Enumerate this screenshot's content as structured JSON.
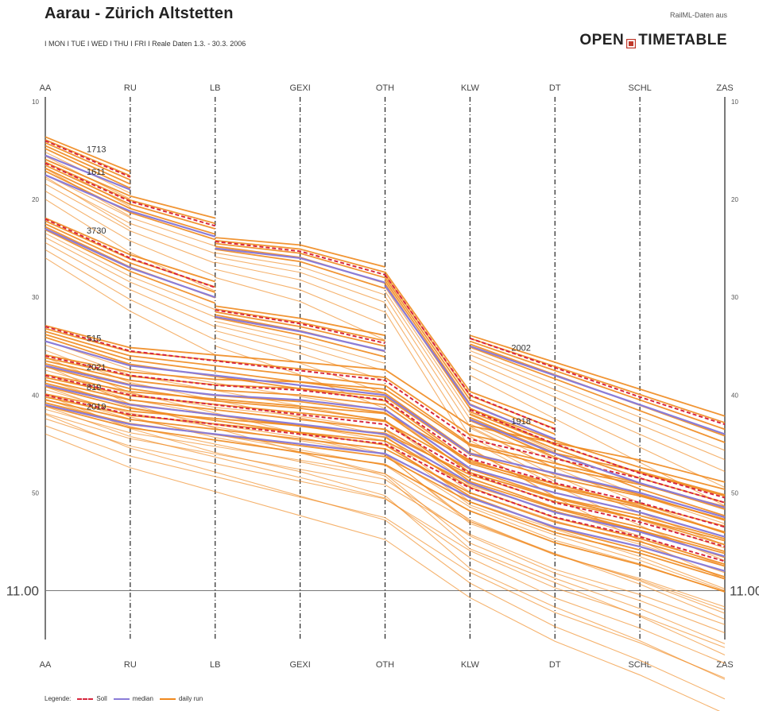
{
  "title": "Aarau - Zürich Altstetten",
  "subtitle": "I MON I TUE I WED I THU I FRI I    Reale Daten 1.3. - 30.3. 2006",
  "source_label": "RailML-Daten aus",
  "logo": {
    "left": "OPEN",
    "right": "TIMETABLE",
    "icon": "open-timetable-logo-icon"
  },
  "legend": {
    "label": "Legende:",
    "items": [
      {
        "name": "Soll",
        "style": "dashed",
        "color": "#d7263d"
      },
      {
        "name": "median",
        "style": "solid",
        "color": "#8a7cd8"
      },
      {
        "name": "daily run",
        "style": "solid",
        "color": "#f0891e"
      }
    ]
  },
  "colors": {
    "soll": "#d7263d",
    "median": "#8a7cd8",
    "daily": "#f0891e",
    "axis": "#222222"
  },
  "chart_data": {
    "type": "line",
    "stations": [
      "AA",
      "RU",
      "LB",
      "GEXI",
      "OTH",
      "KLW",
      "DT",
      "SCHL",
      "ZAS"
    ],
    "y_ticks": [
      {
        "value": 10,
        "label": "10"
      },
      {
        "value": 20,
        "label": "20"
      },
      {
        "value": 30,
        "label": "30"
      },
      {
        "value": 40,
        "label": "40"
      },
      {
        "value": 50,
        "label": "50"
      }
    ],
    "ylim": [
      10,
      65
    ],
    "hour_line": {
      "value": 60,
      "label": "11.00"
    },
    "grid": false,
    "trains": [
      {
        "label": "1713",
        "stops": [
          [
            0,
            14.2
          ],
          [
            1,
            18.0
          ],
          null,
          null,
          null,
          null,
          null,
          null,
          null
        ],
        "soll": [
          [
            0,
            14.0
          ],
          [
            1,
            17.7
          ]
        ],
        "median": [
          [
            0,
            15.5
          ],
          [
            1,
            19.0
          ]
        ]
      },
      {
        "label": "1611",
        "stops": [
          [
            0,
            16.5
          ],
          [
            1,
            20.5
          ],
          [
            2,
            23.0
          ],
          null,
          null,
          null,
          null,
          null,
          null
        ],
        "soll": [
          [
            0,
            16.3
          ],
          [
            1,
            20.2
          ],
          [
            2,
            22.7
          ]
        ],
        "median": [
          [
            0,
            17.5
          ],
          [
            1,
            21.2
          ],
          [
            2,
            23.8
          ]
        ]
      },
      {
        "label": "3730",
        "stops": [
          [
            0,
            22.5
          ],
          [
            1,
            26.5
          ],
          [
            2,
            29.5
          ],
          null,
          null,
          null,
          null,
          null,
          null
        ],
        "soll": [
          [
            0,
            22.0
          ],
          [
            1,
            26.0
          ],
          [
            2,
            29.0
          ]
        ],
        "median": [
          [
            0,
            23.0
          ],
          [
            1,
            27.0
          ],
          [
            2,
            30.0
          ]
        ]
      },
      {
        "label": "",
        "stops": [
          null,
          null,
          [
            2,
            24.5
          ],
          [
            3,
            25.5
          ],
          [
            4,
            28.0
          ],
          null,
          null,
          null,
          null
        ],
        "soll": [
          [
            2,
            24.3
          ],
          [
            3,
            25.3
          ],
          [
            4,
            27.7
          ]
        ],
        "median": [
          [
            2,
            25.0
          ],
          [
            3,
            26.0
          ],
          [
            4,
            28.5
          ]
        ]
      },
      {
        "label": "",
        "stops": [
          null,
          null,
          [
            2,
            31.5
          ],
          [
            3,
            33.0
          ],
          [
            4,
            35.0
          ],
          null,
          null,
          null,
          null
        ],
        "soll": [
          [
            2,
            31.3
          ],
          [
            3,
            32.7
          ],
          [
            4,
            34.7
          ]
        ],
        "median": [
          [
            2,
            32.0
          ],
          [
            3,
            33.5
          ],
          [
            4,
            35.5
          ]
        ]
      },
      {
        "label": "",
        "stops": [
          null,
          null,
          null,
          null,
          [
            4,
            28.0
          ],
          [
            5,
            40.5
          ],
          [
            6,
            44.0
          ],
          null,
          null
        ],
        "soll": [
          [
            4,
            27.7
          ],
          [
            5,
            40.0
          ],
          [
            6,
            43.5
          ]
        ],
        "median": [
          [
            4,
            28.8
          ],
          [
            5,
            41.0
          ],
          [
            6,
            44.5
          ]
        ]
      },
      {
        "label": "2002",
        "stops": [
          null,
          null,
          null,
          null,
          null,
          [
            5,
            34.5
          ],
          [
            6,
            37.5
          ],
          [
            7,
            40.5
          ],
          [
            8,
            43.5
          ]
        ],
        "soll": [
          [
            5,
            34.2
          ],
          [
            6,
            37.2
          ],
          [
            7,
            40.2
          ],
          [
            8,
            43.0
          ]
        ],
        "median": [
          [
            5,
            35.0
          ],
          [
            6,
            38.0
          ],
          [
            7,
            41.0
          ],
          [
            8,
            44.0
          ]
        ]
      },
      {
        "label": "515",
        "stops": [
          [
            0,
            33.5
          ],
          [
            1,
            36.0
          ],
          [
            2,
            37.0
          ],
          [
            3,
            38.0
          ],
          [
            4,
            39.0
          ],
          [
            5,
            45.0
          ],
          [
            6,
            47.0
          ],
          [
            7,
            49.0
          ],
          [
            8,
            51.5
          ]
        ],
        "soll": [
          [
            0,
            33.0
          ],
          [
            1,
            35.5
          ],
          [
            2,
            36.5
          ],
          [
            3,
            37.5
          ],
          [
            4,
            38.5
          ],
          [
            5,
            44.5
          ],
          [
            6,
            46.5
          ],
          [
            7,
            48.5
          ],
          [
            8,
            51.0
          ]
        ],
        "median": [
          [
            0,
            34.5
          ],
          [
            1,
            37.0
          ],
          [
            2,
            38.0
          ],
          [
            3,
            39.0
          ],
          [
            4,
            40.0
          ],
          [
            5,
            46.0
          ],
          [
            6,
            48.0
          ],
          [
            7,
            50.0
          ],
          [
            8,
            52.5
          ]
        ]
      },
      {
        "label": "2021",
        "stops": [
          [
            0,
            36.5
          ],
          [
            1,
            38.5
          ],
          [
            2,
            39.5
          ],
          [
            3,
            40.0
          ],
          [
            4,
            41.0
          ],
          [
            5,
            47.0
          ],
          [
            6,
            49.5
          ],
          [
            7,
            51.5
          ],
          [
            8,
            54.0
          ]
        ],
        "soll": [
          [
            0,
            36.0
          ],
          [
            1,
            38.0
          ],
          [
            2,
            39.0
          ],
          [
            3,
            39.5
          ],
          [
            4,
            40.5
          ],
          [
            5,
            46.5
          ],
          [
            6,
            49.0
          ],
          [
            7,
            51.0
          ],
          [
            8,
            53.5
          ]
        ],
        "median": [
          [
            0,
            37.0
          ],
          [
            1,
            39.0
          ],
          [
            2,
            40.0
          ],
          [
            3,
            40.5
          ],
          [
            4,
            41.5
          ],
          [
            5,
            47.5
          ],
          [
            6,
            50.0
          ],
          [
            7,
            52.0
          ],
          [
            8,
            54.5
          ]
        ]
      },
      {
        "label": "819",
        "stops": [
          [
            0,
            38.5
          ],
          [
            1,
            40.5
          ],
          [
            2,
            41.5
          ],
          [
            3,
            42.5
          ],
          [
            4,
            43.5
          ],
          [
            5,
            48.5
          ],
          [
            6,
            51.5
          ],
          [
            7,
            53.5
          ],
          [
            8,
            56.0
          ]
        ],
        "soll": [
          [
            0,
            38.0
          ],
          [
            1,
            40.0
          ],
          [
            2,
            41.0
          ],
          [
            3,
            42.0
          ],
          [
            4,
            43.0
          ],
          [
            5,
            48.0
          ],
          [
            6,
            51.0
          ],
          [
            7,
            53.0
          ],
          [
            8,
            55.5
          ]
        ],
        "median": [
          [
            0,
            39.0
          ],
          [
            1,
            41.0
          ],
          [
            2,
            42.0
          ],
          [
            3,
            43.0
          ],
          [
            4,
            44.0
          ],
          [
            5,
            49.0
          ],
          [
            6,
            52.0
          ],
          [
            7,
            54.0
          ],
          [
            8,
            56.5
          ]
        ]
      },
      {
        "label": "2019",
        "stops": [
          [
            0,
            40.5
          ],
          [
            1,
            42.5
          ],
          [
            2,
            43.5
          ],
          [
            3,
            44.5
          ],
          [
            4,
            45.5
          ],
          [
            5,
            50.0
          ],
          [
            6,
            53.0
          ],
          [
            7,
            55.0
          ],
          [
            8,
            57.5
          ]
        ],
        "soll": [
          [
            0,
            40.0
          ],
          [
            1,
            42.0
          ],
          [
            2,
            43.0
          ],
          [
            3,
            44.0
          ],
          [
            4,
            45.0
          ],
          [
            5,
            49.5
          ],
          [
            6,
            52.5
          ],
          [
            7,
            54.5
          ],
          [
            8,
            57.0
          ]
        ],
        "median": [
          [
            0,
            41.0
          ],
          [
            1,
            43.0
          ],
          [
            2,
            44.0
          ],
          [
            3,
            45.0
          ],
          [
            4,
            46.0
          ],
          [
            5,
            50.5
          ],
          [
            6,
            53.5
          ],
          [
            7,
            55.5
          ],
          [
            8,
            58.0
          ]
        ]
      },
      {
        "label": "1918",
        "stops": [
          null,
          null,
          null,
          null,
          null,
          [
            5,
            42.0
          ],
          [
            6,
            45.5
          ],
          [
            7,
            48.5
          ],
          [
            8,
            51.0
          ]
        ],
        "soll": [
          [
            5,
            41.5
          ],
          [
            6,
            45.0
          ],
          [
            7,
            48.0
          ],
          [
            8,
            50.5
          ]
        ],
        "median": [
          [
            5,
            42.5
          ],
          [
            6,
            46.0
          ],
          [
            7,
            49.0
          ],
          [
            8,
            51.5
          ]
        ]
      }
    ]
  }
}
